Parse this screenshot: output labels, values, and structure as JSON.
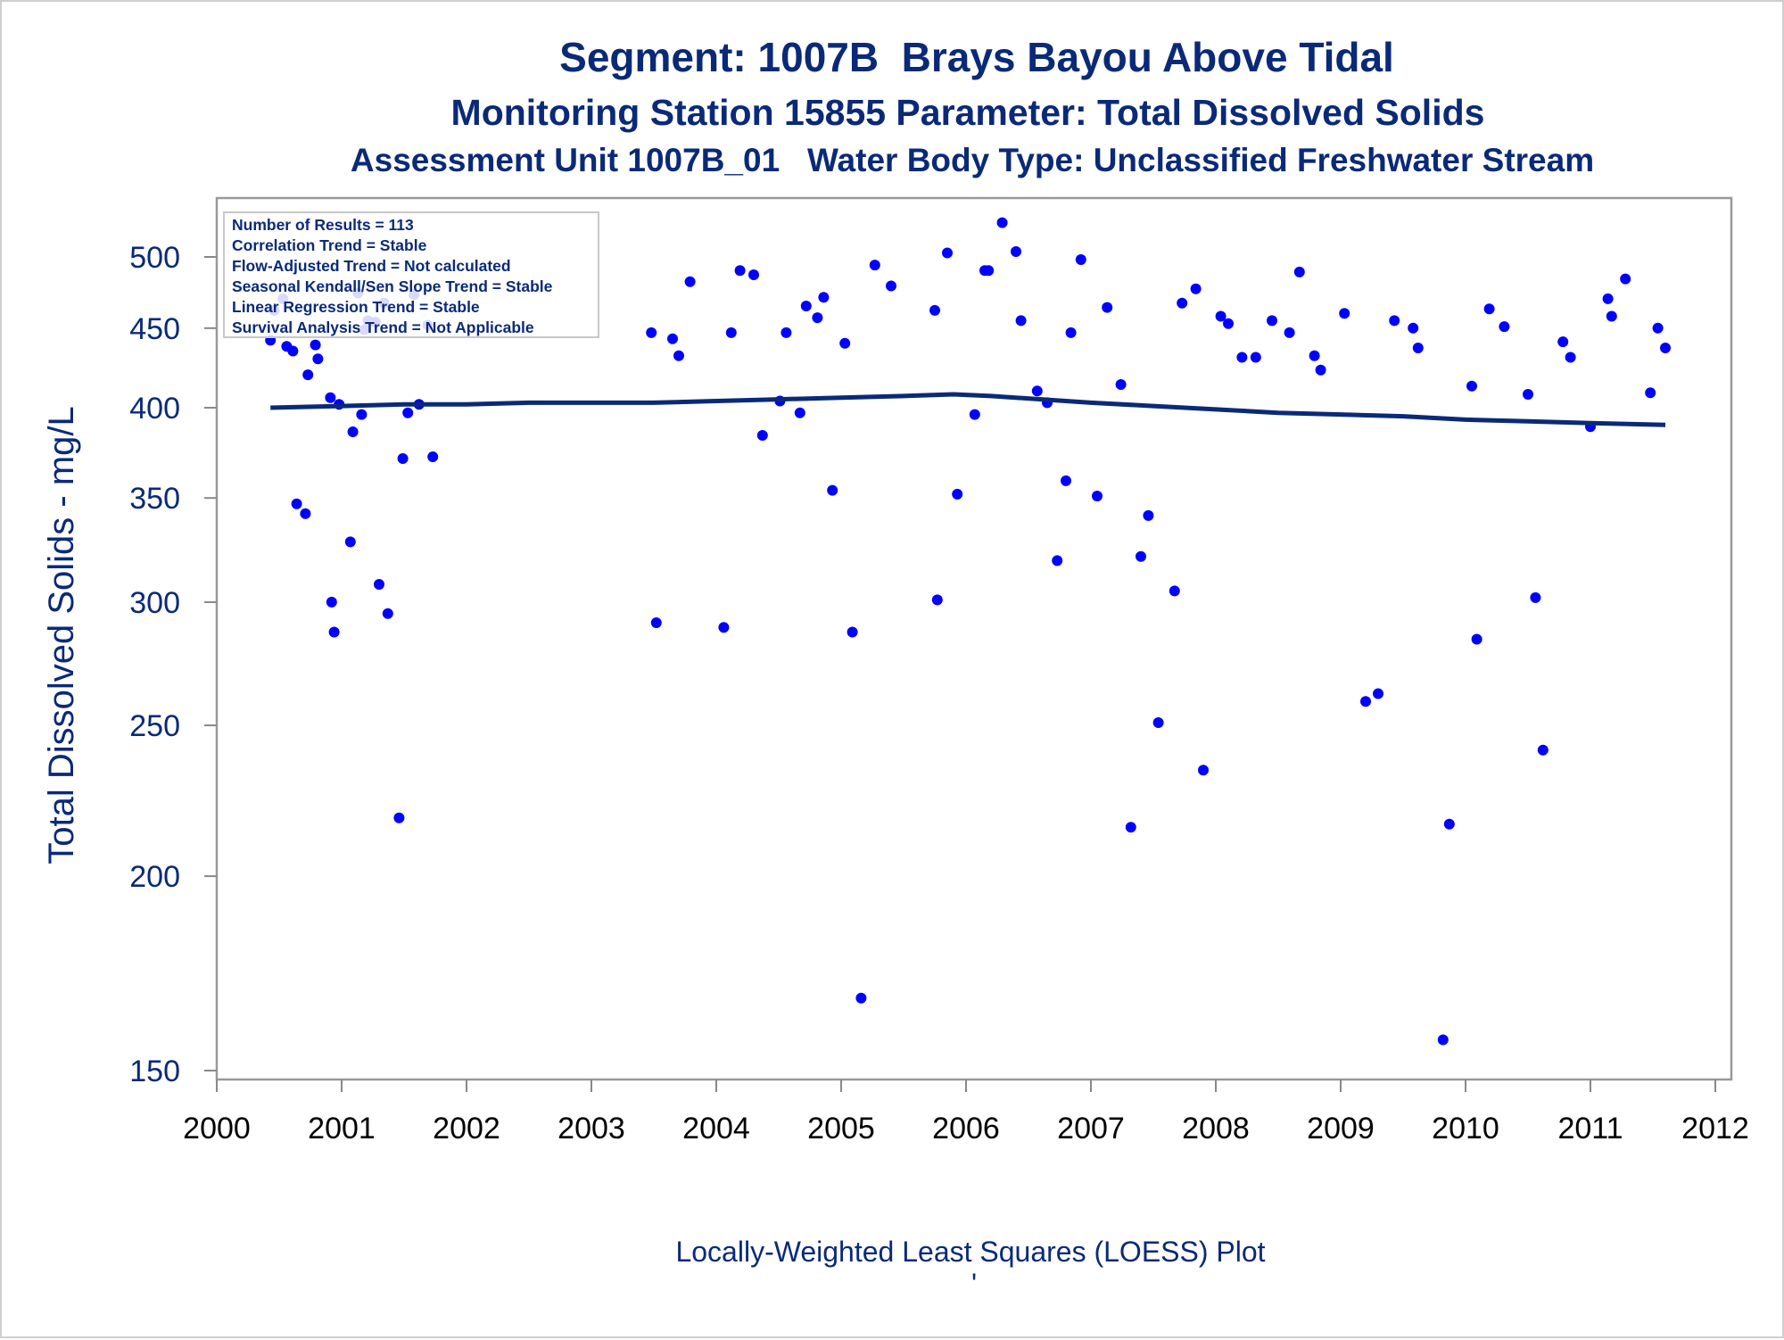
{
  "chart_data": {
    "type": "scatter",
    "title": "Segment: 1007B  Brays Bayou Above Tidal",
    "subtitle": "Monitoring Station 15855 Parameter: Total Dissolved Solids",
    "subtitle2": "Assessment Unit 1007B_01   Water Body Type: Unclassified Freshwater Stream",
    "xlabel": "",
    "ylabel": "Total Dissolved Solids - mg/L",
    "footnote": "Locally-Weighted Least Squares (LOESS) Plot",
    "footnote_mark": "'",
    "x_range": [
      2000,
      2012
    ],
    "y_range": [
      145,
      530
    ],
    "y_scale": "log",
    "x_ticks": [
      "2000",
      "2001",
      "2002",
      "2003",
      "2004",
      "2005",
      "2006",
      "2007",
      "2008",
      "2009",
      "2010",
      "2011",
      "2012"
    ],
    "y_ticks": [
      "150",
      "200",
      "250",
      "300",
      "350",
      "400",
      "450",
      "500"
    ],
    "grid": false,
    "legend": "none",
    "stats_box": {
      "placement": "top-left",
      "lines": [
        "Number of Results = 113",
        "Correlation Trend = Stable",
        "Flow-Adjusted Trend = Not calculated",
        "Seasonal Kendall/Sen Slope Trend = Stable",
        "Linear Regression Trend = Stable",
        "Survival Analysis Trend = Not Applicable"
      ]
    },
    "colors": {
      "points": "#0000ff",
      "loess_line": "#0a2a78",
      "text": "#0a2a78",
      "axis": "#888888"
    },
    "points": [
      [
        2000.43,
        442
      ],
      [
        2000.46,
        462
      ],
      [
        2000.53,
        470
      ],
      [
        2000.56,
        438
      ],
      [
        2000.61,
        435
      ],
      [
        2000.64,
        347
      ],
      [
        2000.71,
        342
      ],
      [
        2000.73,
        420
      ],
      [
        2000.79,
        439
      ],
      [
        2000.81,
        430
      ],
      [
        2000.91,
        406
      ],
      [
        2000.92,
        300
      ],
      [
        2000.94,
        287
      ],
      [
        2000.98,
        402
      ],
      [
        2001.07,
        328
      ],
      [
        2001.09,
        386
      ],
      [
        2001.13,
        474
      ],
      [
        2001.16,
        396
      ],
      [
        2001.18,
        449
      ],
      [
        2001.21,
        455
      ],
      [
        2001.27,
        454
      ],
      [
        2001.3,
        308
      ],
      [
        2001.34,
        467
      ],
      [
        2001.37,
        295
      ],
      [
        2001.46,
        218
      ],
      [
        2001.49,
        371
      ],
      [
        2001.53,
        397
      ],
      [
        2001.58,
        473
      ],
      [
        2001.62,
        402
      ],
      [
        2001.69,
        452
      ],
      [
        2001.73,
        372
      ],
      [
        2003.48,
        447
      ],
      [
        2003.52,
        291
      ],
      [
        2003.65,
        443
      ],
      [
        2003.7,
        432
      ],
      [
        2003.79,
        482
      ],
      [
        2004.06,
        289
      ],
      [
        2004.12,
        447
      ],
      [
        2004.19,
        490
      ],
      [
        2004.3,
        487
      ],
      [
        2004.37,
        384
      ],
      [
        2004.51,
        404
      ],
      [
        2004.56,
        447
      ],
      [
        2004.67,
        397
      ],
      [
        2004.72,
        465
      ],
      [
        2004.81,
        457
      ],
      [
        2004.86,
        471
      ],
      [
        2004.93,
        354
      ],
      [
        2005.03,
        440
      ],
      [
        2005.09,
        287
      ],
      [
        2005.16,
        167
      ],
      [
        2005.27,
        494
      ],
      [
        2005.4,
        479
      ],
      [
        2005.75,
        462
      ],
      [
        2005.77,
        301
      ],
      [
        2005.85,
        503
      ],
      [
        2005.93,
        352
      ],
      [
        2006.07,
        396
      ],
      [
        2006.15,
        490
      ],
      [
        2006.18,
        490
      ],
      [
        2006.29,
        526
      ],
      [
        2006.4,
        504
      ],
      [
        2006.44,
        455
      ],
      [
        2006.57,
        410
      ],
      [
        2006.65,
        403
      ],
      [
        2006.73,
        319
      ],
      [
        2006.8,
        359
      ],
      [
        2006.84,
        447
      ],
      [
        2006.92,
        498
      ],
      [
        2007.05,
        351
      ],
      [
        2007.13,
        464
      ],
      [
        2007.24,
        414
      ],
      [
        2007.32,
        215
      ],
      [
        2007.4,
        321
      ],
      [
        2007.46,
        341
      ],
      [
        2007.54,
        251
      ],
      [
        2007.67,
        305
      ],
      [
        2007.73,
        467
      ],
      [
        2007.84,
        477
      ],
      [
        2007.9,
        234
      ],
      [
        2008.04,
        458
      ],
      [
        2008.1,
        453
      ],
      [
        2008.21,
        431
      ],
      [
        2008.32,
        431
      ],
      [
        2008.45,
        455
      ],
      [
        2008.59,
        447
      ],
      [
        2008.67,
        489
      ],
      [
        2008.79,
        432
      ],
      [
        2008.84,
        423
      ],
      [
        2009.03,
        460
      ],
      [
        2009.2,
        259
      ],
      [
        2009.3,
        262
      ],
      [
        2009.43,
        455
      ],
      [
        2009.58,
        450
      ],
      [
        2009.62,
        437
      ],
      [
        2009.82,
        157
      ],
      [
        2009.87,
        216
      ],
      [
        2010.05,
        413
      ],
      [
        2010.09,
        284
      ],
      [
        2010.19,
        463
      ],
      [
        2010.31,
        451
      ],
      [
        2010.5,
        408
      ],
      [
        2010.56,
        302
      ],
      [
        2010.62,
        241
      ],
      [
        2010.78,
        441
      ],
      [
        2010.84,
        431
      ],
      [
        2011.0,
        389
      ],
      [
        2011.14,
        470
      ],
      [
        2011.17,
        458
      ],
      [
        2011.28,
        484
      ],
      [
        2011.48,
        409
      ],
      [
        2011.54,
        450
      ],
      [
        2011.6,
        437
      ]
    ],
    "loess": [
      [
        2000.43,
        400
      ],
      [
        2001.0,
        401
      ],
      [
        2001.5,
        402
      ],
      [
        2002.0,
        402
      ],
      [
        2002.5,
        403
      ],
      [
        2003.0,
        403
      ],
      [
        2003.5,
        403
      ],
      [
        2004.0,
        404
      ],
      [
        2004.5,
        405
      ],
      [
        2005.0,
        406
      ],
      [
        2005.5,
        407
      ],
      [
        2005.9,
        408
      ],
      [
        2006.2,
        407
      ],
      [
        2006.6,
        405
      ],
      [
        2007.0,
        403
      ],
      [
        2007.5,
        401
      ],
      [
        2008.0,
        399
      ],
      [
        2008.5,
        397
      ],
      [
        2009.0,
        396
      ],
      [
        2009.5,
        395
      ],
      [
        2010.0,
        393
      ],
      [
        2010.5,
        392
      ],
      [
        2011.0,
        391
      ],
      [
        2011.6,
        390
      ]
    ]
  }
}
